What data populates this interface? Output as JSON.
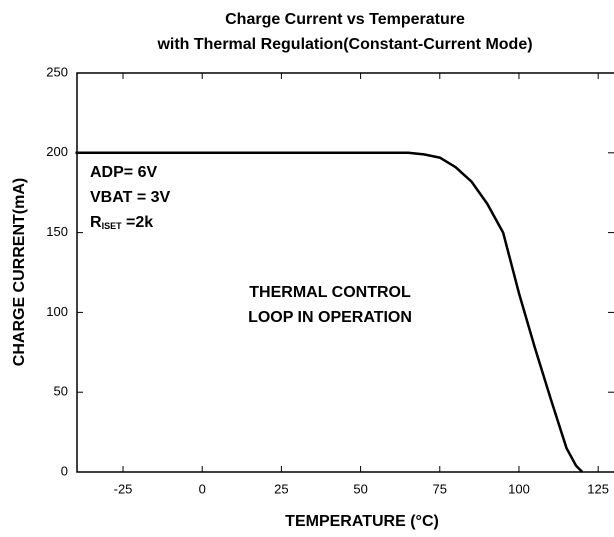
{
  "chart_data": {
    "type": "line",
    "title": [
      "Charge Current vs Temperature",
      "with Thermal Regulation(Constant-Current Mode)"
    ],
    "xlabel": "TEMPERATURE (°C)",
    "ylabel": "CHARGE CURRENT(mA)",
    "annotations": [
      "ADP= 6V",
      "VBAT = 3V"
    ],
    "riset": {
      "main": "R",
      "sub": "ISET",
      "rest": " =2k"
    },
    "note": [
      "THERMAL CONTROL",
      "LOOP IN OPERATION"
    ],
    "x": [
      -40,
      0,
      50,
      65,
      70,
      75,
      80,
      85,
      90,
      95,
      100,
      105,
      110,
      115,
      118,
      120
    ],
    "series": [
      {
        "name": "Charge current",
        "color": "#000000",
        "values": [
          200,
          200,
          200,
          200,
          199,
          197,
          191,
          182,
          168,
          150,
          112,
          78,
          46,
          15,
          4,
          0
        ]
      }
    ],
    "xlim": [
      -40,
      130
    ],
    "xticks": [
      -25,
      0,
      25,
      50,
      75,
      100,
      125
    ],
    "ylim": [
      0,
      250
    ],
    "yticks": [
      0,
      50,
      100,
      150,
      200,
      250
    ],
    "grid": false
  }
}
